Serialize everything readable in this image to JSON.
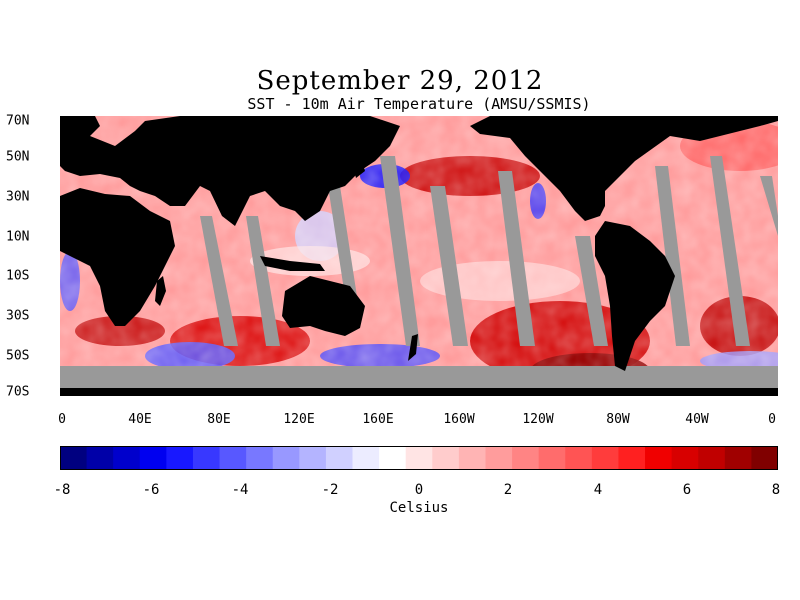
{
  "title": "September 29, 2012",
  "subtitle": "SST - 10m Air Temperature (AMSU/SSMIS)",
  "lat_labels": [
    "70N",
    "50N",
    "30N",
    "10N",
    "10S",
    "30S",
    "50S",
    "70S"
  ],
  "lon_labels": [
    "0",
    "40E",
    "80E",
    "120E",
    "160E",
    "160W",
    "120W",
    "80W",
    "40W",
    "0"
  ],
  "colorbar": {
    "ticks": [
      "-8",
      "-6",
      "-4",
      "-2",
      "0",
      "2",
      "4",
      "6",
      "8"
    ],
    "units": "Celsius",
    "min": -8,
    "max": 8,
    "colors": [
      "#000080",
      "#0000a8",
      "#0000cc",
      "#0000f0",
      "#1818ff",
      "#3838ff",
      "#5858ff",
      "#7878ff",
      "#9898ff",
      "#b4b4ff",
      "#d0d0ff",
      "#ececff",
      "#ffffff",
      "#ffe4e4",
      "#ffcccc",
      "#ffb4b4",
      "#ff9c9c",
      "#ff8484",
      "#ff6c6c",
      "#ff5454",
      "#ff3c3c",
      "#ff2020",
      "#f00000",
      "#d80000",
      "#c00000",
      "#a00000",
      "#800000"
    ]
  },
  "legend": {
    "land": "#000000",
    "no_data": "#999999"
  }
}
